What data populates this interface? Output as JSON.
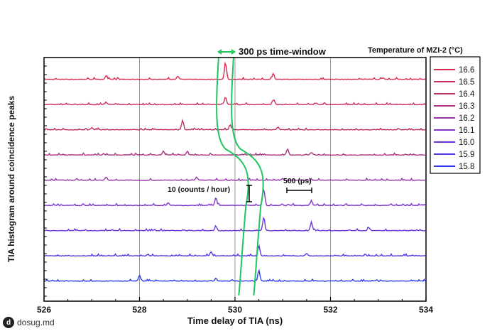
{
  "chart_data": {
    "type": "line",
    "title": "",
    "xlabel": "Time delay of TIA (ns)",
    "ylabel": "TIA histogram around coincidence peaks",
    "xlim": [
      526,
      534
    ],
    "x_ticks": [
      "526",
      "528",
      "530",
      "532",
      "534"
    ],
    "legend_title": "Temperature of MZI-2 (°C)",
    "legend_placement": "right",
    "grid": "vertical lines at major x ticks",
    "series": [
      {
        "name": "16.6",
        "color": "#d8294e",
        "peaks": [
          [
            529.8,
            1.0
          ],
          [
            530.8,
            0.35
          ],
          [
            528.8,
            0.2
          ],
          [
            527.3,
            0.15
          ],
          [
            533.1,
            0.1
          ]
        ]
      },
      {
        "name": "16.5",
        "color": "#cc2c5a",
        "peaks": [
          [
            529.8,
            0.45
          ],
          [
            530.8,
            0.25
          ],
          [
            527.3,
            0.12
          ],
          [
            531.7,
            0.1
          ]
        ]
      },
      {
        "name": "16.4",
        "color": "#bf2f67",
        "peaks": [
          [
            528.9,
            0.55
          ],
          [
            529.9,
            0.3
          ],
          [
            530.9,
            0.15
          ],
          [
            527.0,
            0.12
          ]
        ]
      },
      {
        "name": "16.3",
        "color": "#a93180",
        "peaks": [
          [
            528.5,
            0.22
          ],
          [
            529.0,
            0.18
          ],
          [
            531.1,
            0.35
          ],
          [
            531.6,
            0.15
          ]
        ]
      },
      {
        "name": "16.2",
        "color": "#9433a6",
        "peaks": [
          [
            527.3,
            0.18
          ],
          [
            529.2,
            0.14
          ],
          [
            531.0,
            0.1
          ]
        ]
      },
      {
        "name": "16.1",
        "color": "#8034c8",
        "peaks": [
          [
            530.6,
            1.0
          ],
          [
            529.6,
            0.45
          ],
          [
            528.6,
            0.15
          ],
          [
            531.6,
            0.25
          ]
        ]
      },
      {
        "name": "16.0",
        "color": "#6a35d9",
        "peaks": [
          [
            530.6,
            0.75
          ],
          [
            531.6,
            0.5
          ],
          [
            529.6,
            0.25
          ],
          [
            532.8,
            0.18
          ]
        ]
      },
      {
        "name": "15.9",
        "color": "#4f36e3",
        "peaks": [
          [
            530.5,
            0.6
          ],
          [
            529.5,
            0.22
          ],
          [
            531.5,
            0.15
          ]
        ]
      },
      {
        "name": "15.8",
        "color": "#2d37f0",
        "peaks": [
          [
            530.5,
            0.65
          ],
          [
            528.0,
            0.35
          ],
          [
            529.6,
            0.15
          ]
        ]
      }
    ],
    "annotations": {
      "time_window": "300 ps time-window",
      "vertical_scale": "10 (counts / hour)",
      "horizontal_scale": "500 (ps)"
    },
    "colors": {
      "window_lines": "#22c55e",
      "grid": "#9a9a9a",
      "axis": "#000000"
    }
  },
  "watermark": {
    "icon": "d",
    "text": "dosug.md"
  }
}
